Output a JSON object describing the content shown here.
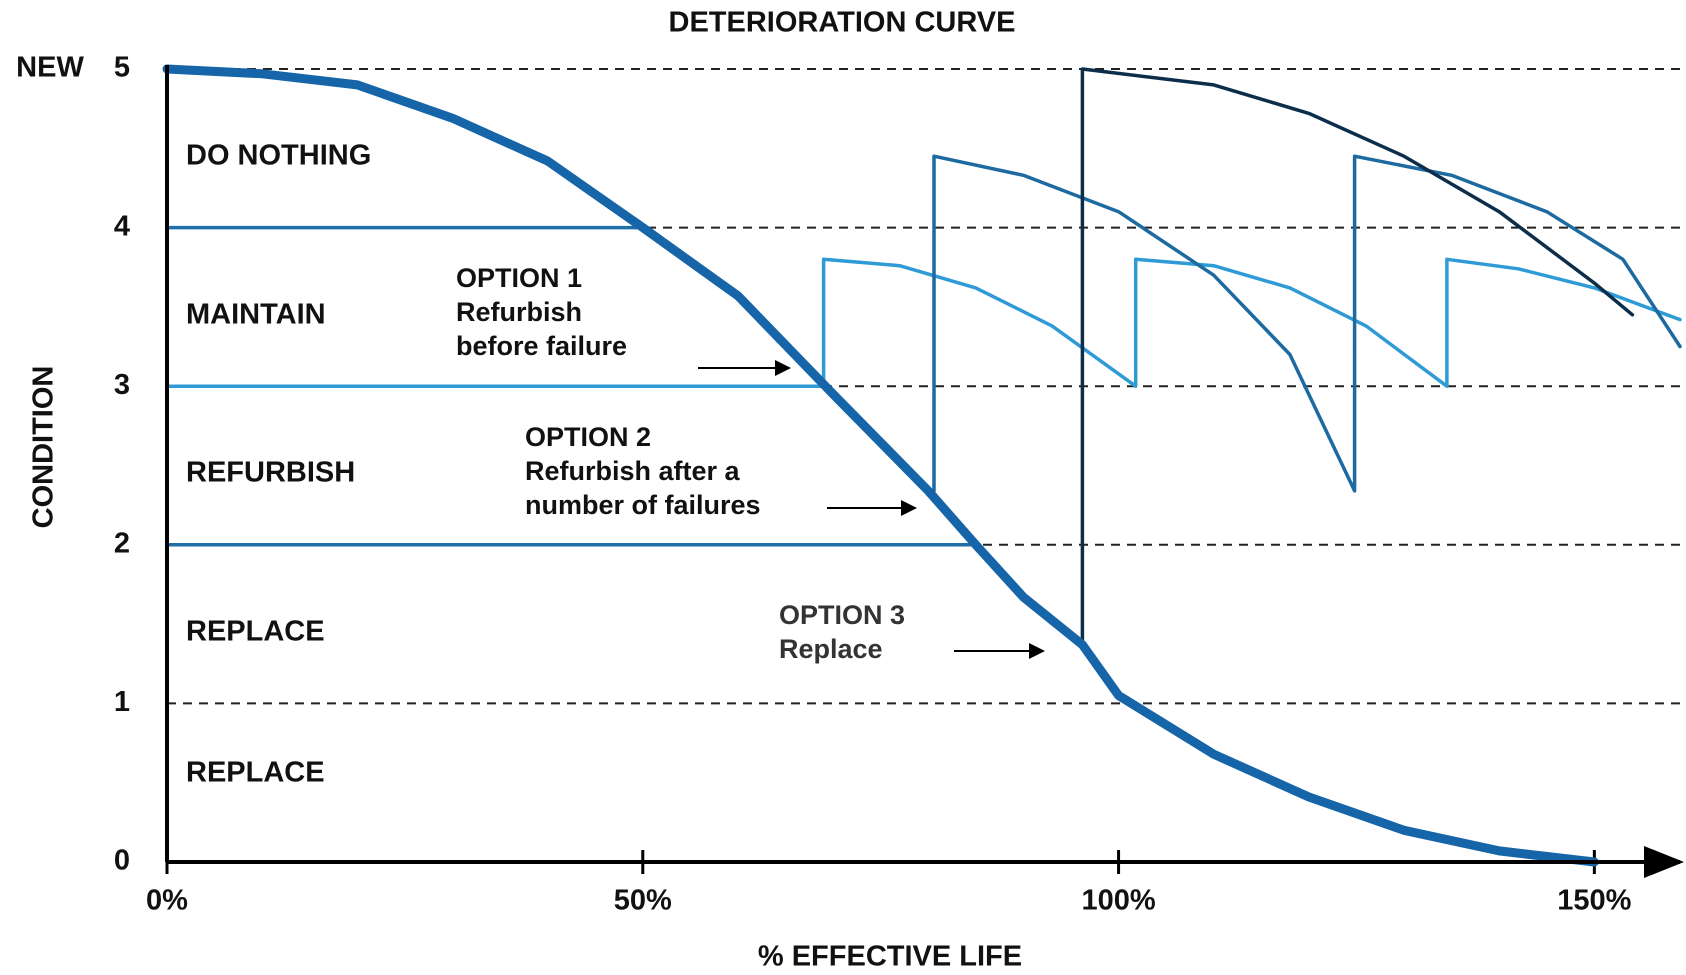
{
  "chart_data": {
    "type": "line",
    "title": "DETERIORATION CURVE",
    "x_label": "% EFFECTIVE  LIFE",
    "y_label": "CONDITION",
    "top_label": "NEW",
    "xlim": [
      0,
      159
    ],
    "ylim": [
      0,
      5
    ],
    "xticks": [
      {
        "value": 0,
        "label": "0%"
      },
      {
        "value": 50,
        "label": "50%"
      },
      {
        "value": 100,
        "label": "100%"
      },
      {
        "value": 150,
        "label": "150%"
      }
    ],
    "yticks": [
      0,
      1,
      2,
      3,
      4,
      5
    ],
    "grid": true,
    "zones": [
      "DO NOTHING",
      "MAINTAIN",
      "REFURBISH",
      "REPLACE",
      "REPLACE"
    ],
    "annotations": [
      {
        "lines": [
          "OPTION 1",
          "Refurbish",
          "before failure"
        ]
      },
      {
        "lines": [
          "OPTION 2",
          "Refurbish after a",
          "number of failures"
        ]
      },
      {
        "lines": [
          "OPTION 3",
          "Replace"
        ]
      }
    ],
    "series": [
      {
        "color": "#1565a8",
        "x": [
          0,
          10,
          20,
          30,
          40,
          50,
          60,
          70,
          80,
          85,
          90,
          96.2,
          100,
          110,
          120,
          130,
          140,
          150
        ],
        "values": [
          5,
          4.97,
          4.9,
          4.69,
          4.42,
          4.0,
          3.57,
          2.95,
          2.34,
          2.0,
          1.67,
          1.37,
          1.05,
          0.68,
          0.41,
          0.2,
          0.07,
          0
        ]
      },
      {
        "color": "#1f6fa8",
        "x": [
          0,
          50
        ],
        "values": [
          4,
          4
        ]
      },
      {
        "color": "#1f6fa8",
        "x": [
          0,
          85.3
        ],
        "values": [
          2,
          2
        ]
      },
      {
        "color": "#2e9bd6",
        "x": [
          0,
          69,
          69,
          77,
          85,
          93,
          101.8,
          101.8,
          110,
          118,
          126,
          134.5,
          134.5,
          142,
          150,
          159
        ],
        "values": [
          3,
          3,
          3.8,
          3.76,
          3.62,
          3.38,
          3.0,
          3.8,
          3.76,
          3.62,
          3.38,
          3.0,
          3.8,
          3.74,
          3.62,
          3.42
        ]
      },
      {
        "color": "#1d6aa0",
        "x": [
          80.6,
          80.6,
          90,
          100,
          110,
          118,
          124.8,
          124.8,
          135,
          145,
          153,
          159
        ],
        "values": [
          2.34,
          4.45,
          4.33,
          4.1,
          3.7,
          3.2,
          2.34,
          4.45,
          4.33,
          4.1,
          3.8,
          3.25
        ]
      },
      {
        "color": "#0d2e4a",
        "x": [
          96.2,
          96.2,
          110,
          120,
          130,
          140,
          150,
          154
        ],
        "values": [
          1.37,
          5,
          4.9,
          4.72,
          4.45,
          4.1,
          3.65,
          3.45
        ]
      }
    ]
  }
}
